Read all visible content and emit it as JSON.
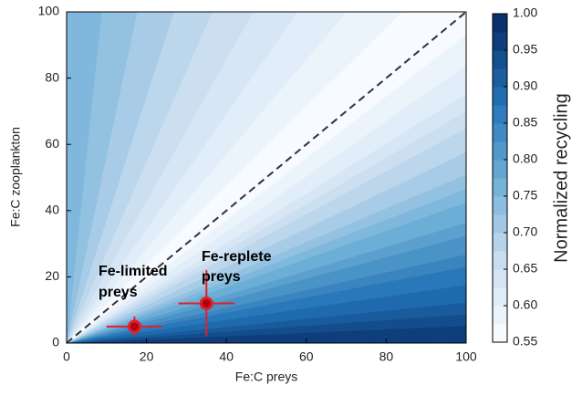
{
  "chart_data": {
    "type": "scatter",
    "x_label": "Fe:C preys",
    "y_label": "Fe:C zooplankton",
    "xlim": [
      0,
      100
    ],
    "ylim": [
      0,
      100
    ],
    "xticks": [
      0,
      20,
      40,
      60,
      80,
      100
    ],
    "yticks": [
      0,
      20,
      40,
      60,
      80,
      100
    ],
    "diagonal": true,
    "colormap": [
      "#f7fbff",
      "#c6dbef",
      "#6baed6",
      "#2171b5",
      "#08306b"
    ],
    "colorbar": {
      "label": "Normalized recycling",
      "lim": [
        0.55,
        1.0
      ],
      "ticks": [
        0.55,
        {
          "value": 0.6,
          "label": "0.60"
        },
        0.65,
        {
          "value": 0.7,
          "label": "0.70"
        },
        0.75,
        {
          "value": 0.8,
          "label": "0.80"
        },
        0.85,
        {
          "value": 0.9,
          "label": "0.90"
        },
        0.95,
        {
          "value": 1.0,
          "label": "1.00"
        }
      ]
    },
    "series": [
      {
        "color": "#e0202a",
        "x": [
          17,
          35
        ],
        "y": [
          5,
          12
        ],
        "xerr": [
          7,
          7
        ],
        "yerr": [
          3,
          10
        ]
      }
    ],
    "annotations": [
      [
        "Fe-limited",
        "preys"
      ],
      [
        "Fe-replete",
        "preys"
      ]
    ]
  }
}
